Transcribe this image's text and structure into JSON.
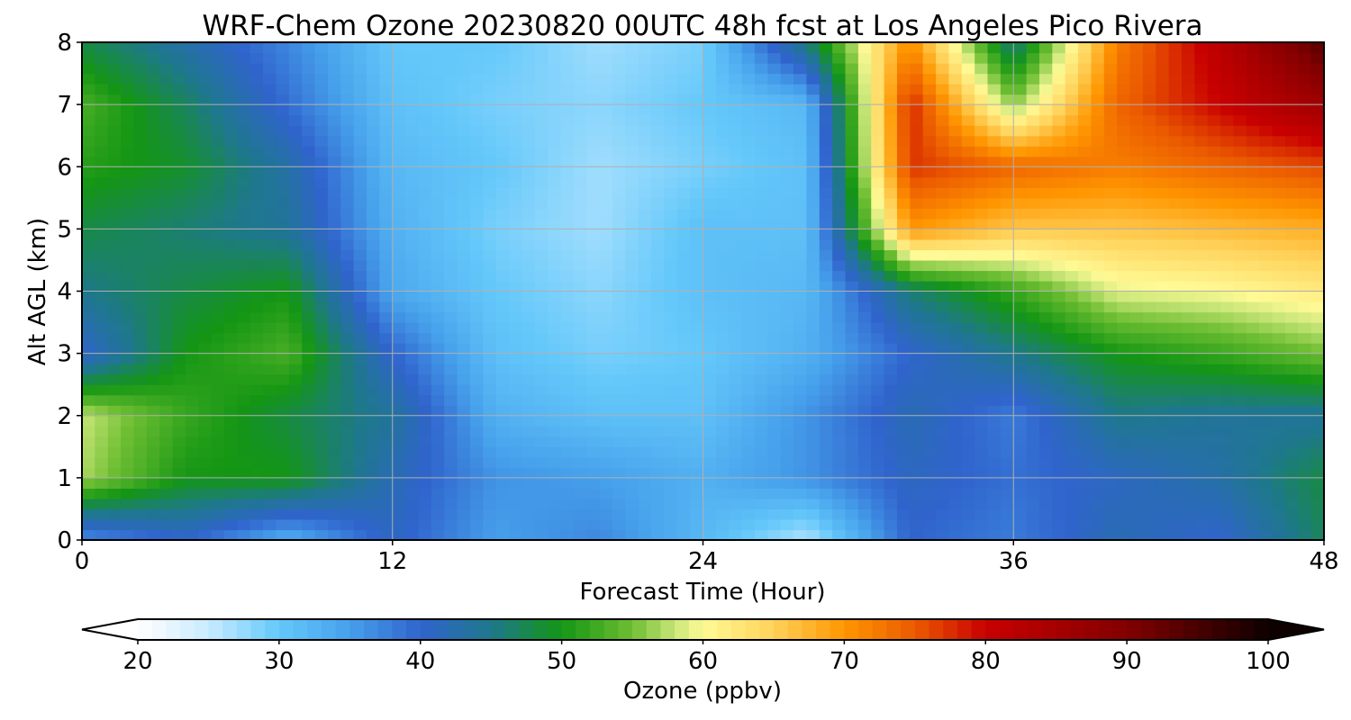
{
  "chart_data": {
    "type": "heatmap",
    "title": "WRF-Chem Ozone  20230820 00UTC 48h fcst at Los Angeles Pico Rivera",
    "xlabel": "Forecast Time (Hour)",
    "ylabel": "Alt AGL (km)",
    "xlim": [
      0,
      48
    ],
    "ylim": [
      0,
      8
    ],
    "x_ticks": [
      0,
      12,
      24,
      36,
      48
    ],
    "y_ticks": [
      0,
      1,
      2,
      3,
      4,
      5,
      6,
      7,
      8
    ],
    "grid": true,
    "x": [
      0,
      4,
      8,
      12,
      16,
      20,
      24,
      28,
      32,
      36,
      40,
      44,
      48
    ],
    "y": [
      0,
      1,
      2,
      3,
      4,
      5,
      6,
      7,
      8
    ],
    "z": [
      [
        36,
        40,
        33,
        41,
        35,
        37,
        32,
        26,
        40,
        38,
        42,
        40,
        47
      ],
      [
        57,
        50,
        50,
        42,
        36,
        35,
        33,
        36,
        41,
        39,
        41,
        43,
        48
      ],
      [
        58,
        52,
        48,
        44,
        33,
        31,
        31,
        36,
        42,
        38,
        45,
        44,
        44
      ],
      [
        40,
        50,
        53,
        40,
        31,
        29,
        30,
        33,
        40,
        45,
        50,
        52,
        55
      ],
      [
        45,
        48,
        50,
        34,
        30,
        28,
        31,
        32,
        46,
        52,
        59,
        60,
        62
      ],
      [
        48,
        46,
        44,
        33,
        29,
        27,
        31,
        31,
        70,
        66,
        66,
        67,
        68
      ],
      [
        51,
        49,
        43,
        32,
        30,
        27,
        29,
        31,
        77,
        74,
        72,
        74,
        76
      ],
      [
        53,
        47,
        39,
        31,
        29,
        28,
        30,
        32,
        78,
        56,
        74,
        80,
        86
      ],
      [
        48,
        43,
        37,
        30,
        30,
        27,
        29,
        46,
        71,
        45,
        72,
        82,
        94
      ]
    ],
    "colorbar": {
      "label": "Ozone  (ppbv)",
      "min": 20,
      "max": 100,
      "ticks": [
        20,
        30,
        40,
        50,
        60,
        70,
        80,
        90,
        100
      ],
      "extend": "both"
    }
  }
}
